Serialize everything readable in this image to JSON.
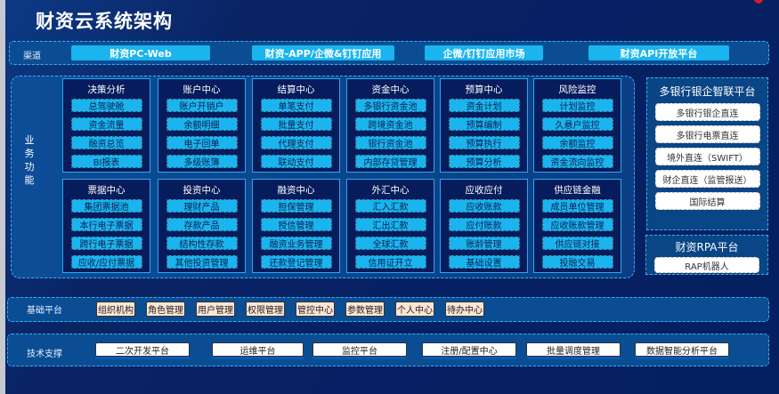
{
  "title": "财资云系统架构",
  "channel": {
    "label": "渠道",
    "items": [
      "财资PC-Web",
      "财资-APP/企微&钉钉应用",
      "企微/钉钉应用市场",
      "财资API开放平台"
    ]
  },
  "business": {
    "label": "业务功能",
    "modules": [
      {
        "title": "决策分析",
        "items": [
          "总驾驶舱",
          "资金流量",
          "融资总览",
          "BI报表"
        ]
      },
      {
        "title": "账户中心",
        "items": [
          "账户开销户",
          "余额明细",
          "电子回单",
          "多级账簿"
        ]
      },
      {
        "title": "结算中心",
        "items": [
          "单笔支付",
          "批量支付",
          "代理支付",
          "联动支付"
        ]
      },
      {
        "title": "资金中心",
        "items": [
          "多银行资金池",
          "跨境资金池",
          "银行资金池",
          "内部存贷管理"
        ]
      },
      {
        "title": "预算中心",
        "items": [
          "资金计划",
          "预算编制",
          "预算执行",
          "预算分析"
        ]
      },
      {
        "title": "风险监控",
        "items": [
          "计划监控",
          "久悬户监控",
          "余额监控",
          "资金流向监控"
        ]
      },
      {
        "title": "票据中心",
        "items": [
          "集团票据池",
          "本行电子票据",
          "跨行电子票据",
          "应收/应付票据"
        ]
      },
      {
        "title": "投资中心",
        "items": [
          "理财产品",
          "存款产品",
          "结构性存款",
          "其他投资管理"
        ]
      },
      {
        "title": "融资中心",
        "items": [
          "担保管理",
          "授信管理",
          "融资业务管理",
          "还款登记管理"
        ]
      },
      {
        "title": "外汇中心",
        "items": [
          "汇入汇款",
          "汇出汇款",
          "全球汇款",
          "信用证开立"
        ]
      },
      {
        "title": "应收应付",
        "items": [
          "应收账款",
          "应付账款",
          "账龄管理",
          "基础设置"
        ]
      },
      {
        "title": "供应链金融",
        "items": [
          "成员单位管理",
          "应收账款管理",
          "供应链对接",
          "投融交易"
        ]
      }
    ]
  },
  "bank_platform": {
    "title": "多银行银企智联平台",
    "items": [
      "多银行银企直连",
      "多银行电票直连",
      "境外直连（SWIFT）",
      "财企直连（监管报送）",
      "国际结算"
    ]
  },
  "rpa_platform": {
    "title": "财资RPA平台",
    "items": [
      "RAP机器人"
    ]
  },
  "base_platform": {
    "label": "基础平台",
    "items": [
      "组织机构",
      "角色管理",
      "用户管理",
      "权限管理",
      "管控中心",
      "参数管理",
      "个人中心",
      "待办中心"
    ]
  },
  "tech_support": {
    "label": "技术支撑",
    "items": [
      "二次开发平台",
      "运维平台",
      "监控平台",
      "注册/配置中心",
      "批量调度管理",
      "数据智能分析平台"
    ]
  }
}
